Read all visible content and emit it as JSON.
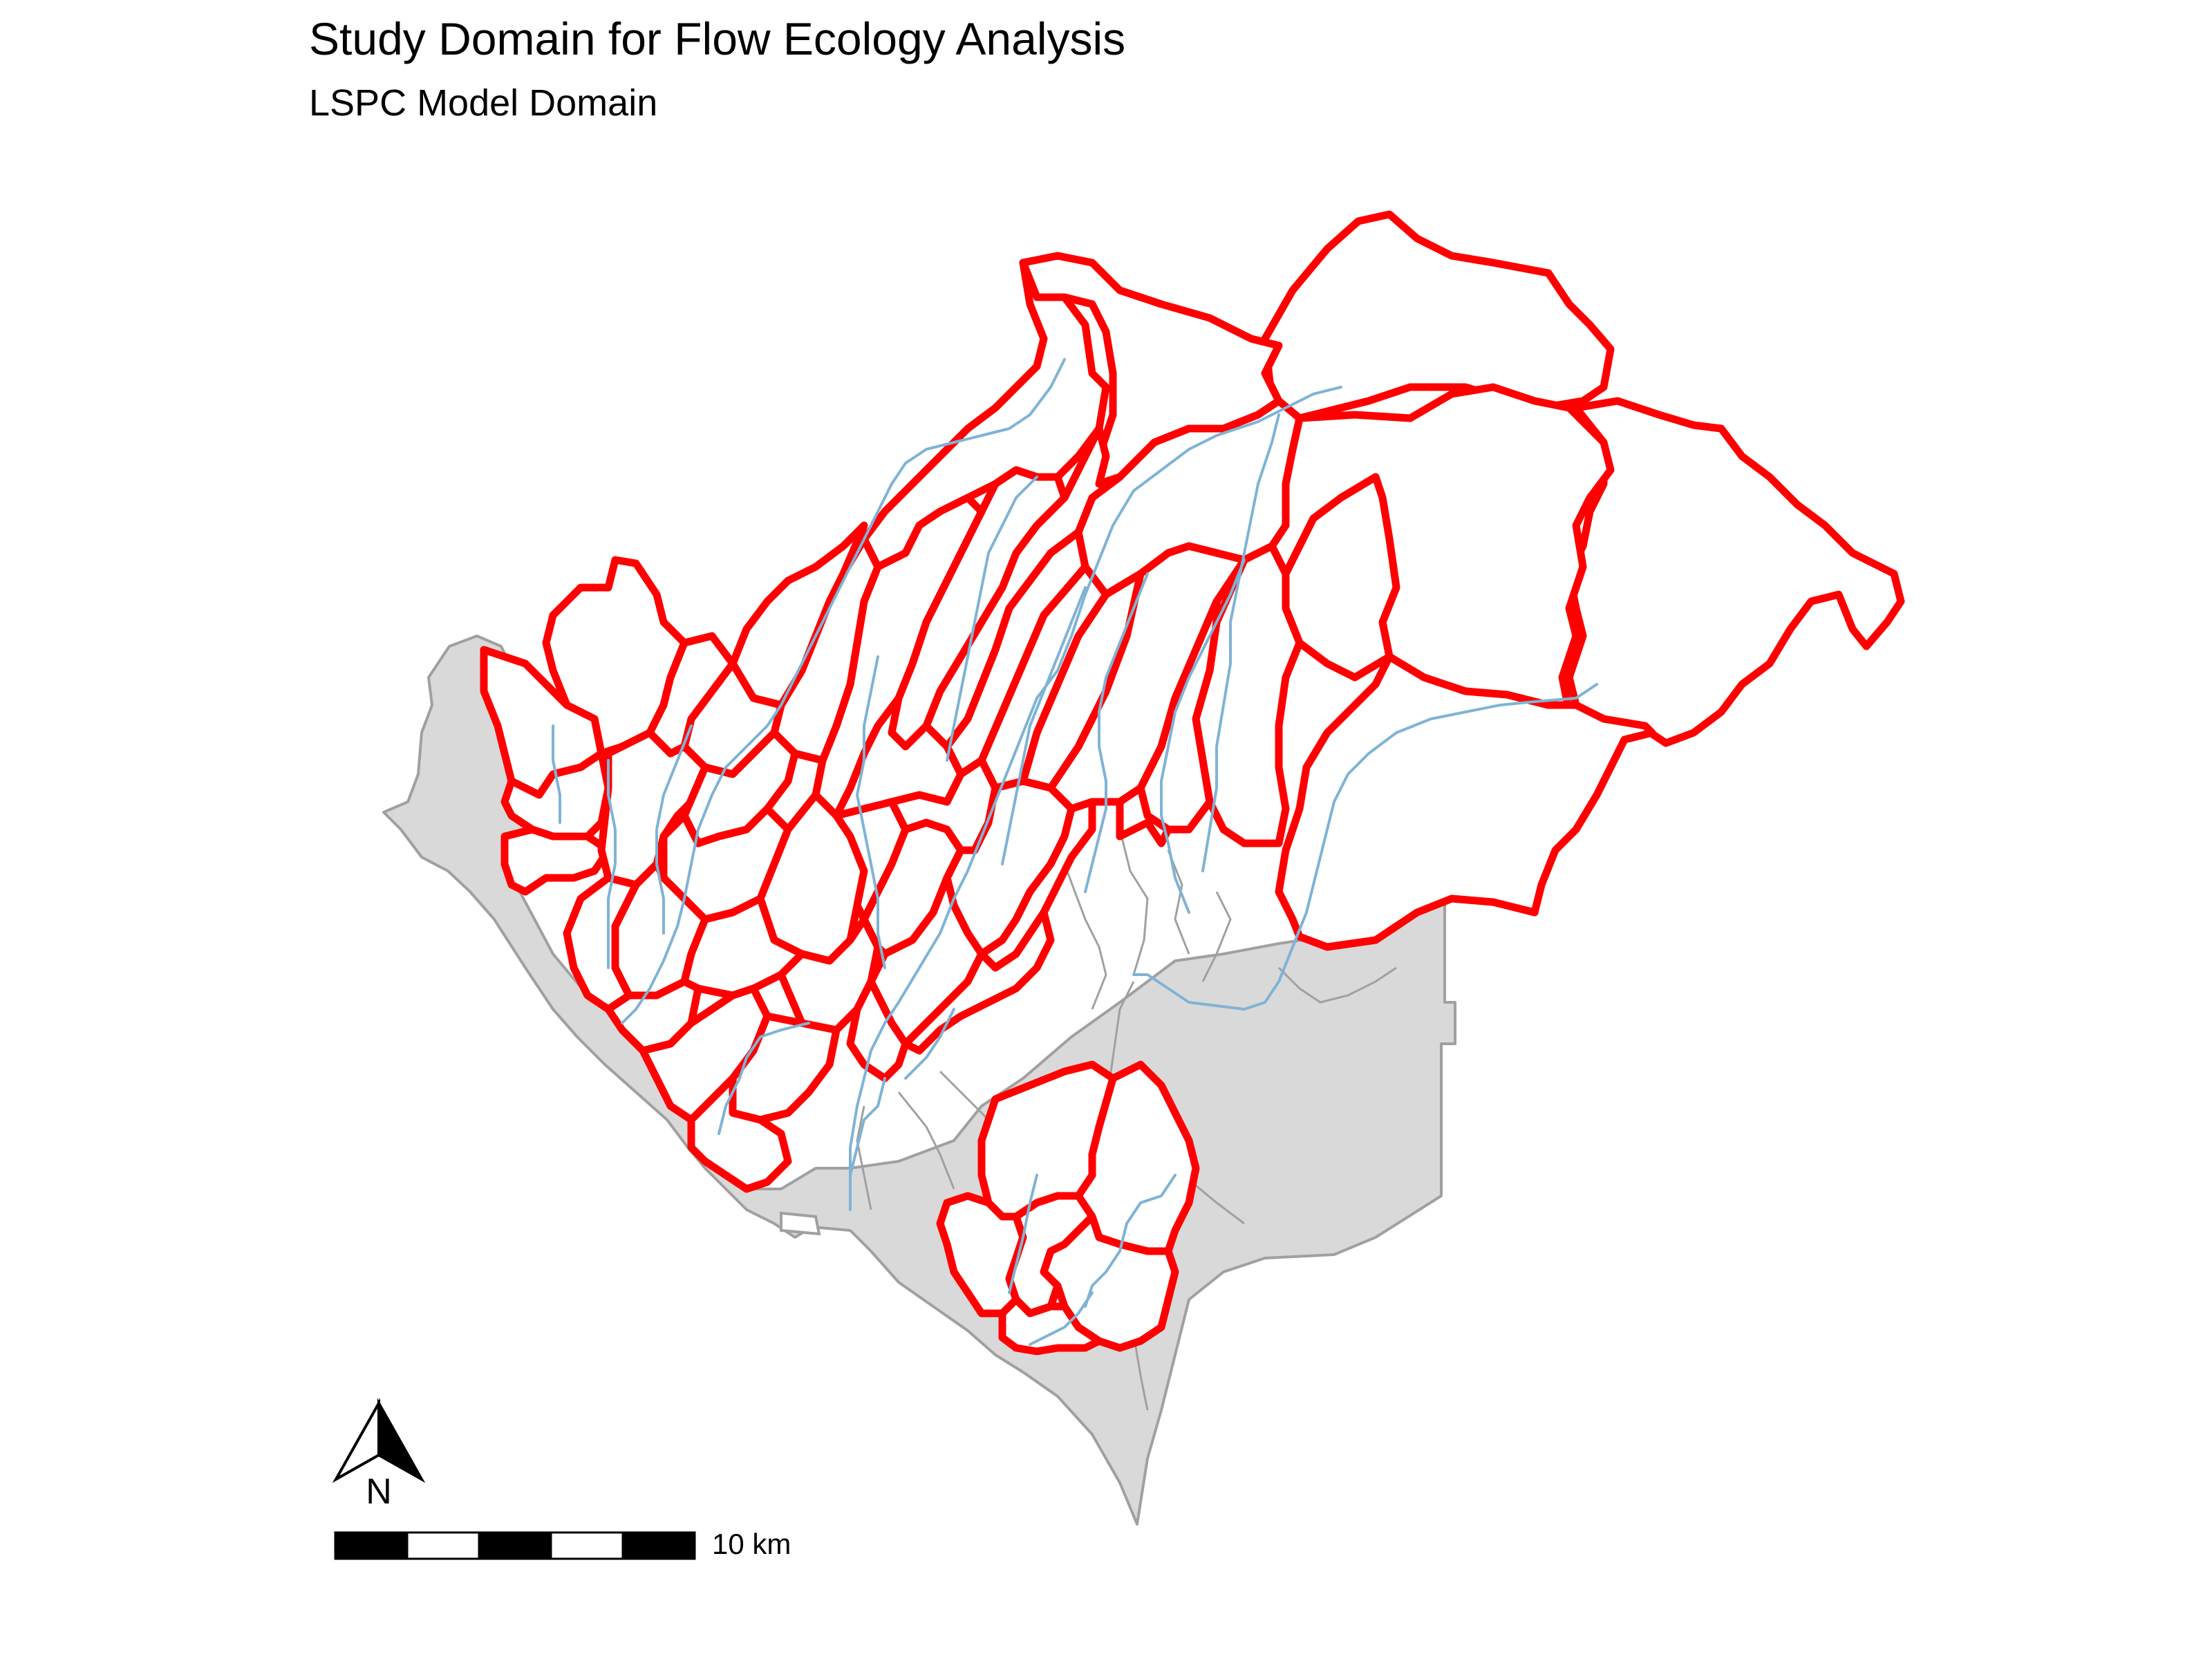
{
  "map": {
    "title": "Study Domain for Flow Ecology Analysis",
    "subtitle": "LSPC Model Domain",
    "colors": {
      "domain_fill": "#d9d9d9",
      "domain_stroke": "#a0a0a0",
      "watershed_stroke": "#ff0000",
      "stream_stroke": "#7fb3d5",
      "background": "#ffffff"
    },
    "north_arrow": {
      "label": "N",
      "icon": "north-arrow-icon"
    },
    "scale_bar": {
      "label": "10 km",
      "segments": 5
    }
  }
}
